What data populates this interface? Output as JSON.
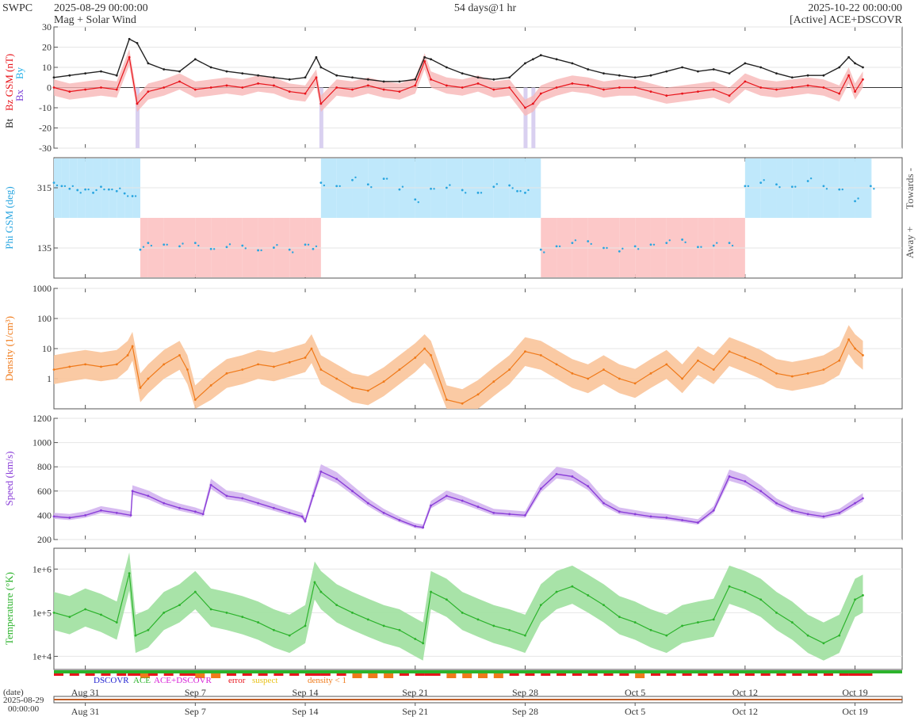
{
  "header": {
    "source": "SWPC",
    "start": "2025-08-29 00:00:00",
    "product": "Mag + Solar Wind",
    "span": "54 days@1 hr",
    "end": "2025-10-22 00:00:00",
    "spacecraft": "[Active] ACE+DSCOVR"
  },
  "colors": {
    "bt": "#222222",
    "bz": "#e8141b",
    "bx": "#7a3fd6",
    "by": "#22b0e8",
    "phi": "#2aa6e0",
    "towards_fill": "#bfe8fb",
    "away_fill": "#fcc8c8",
    "density": "#f07a1a",
    "density_fill": "#f9c49a",
    "speed": "#8a3ed8",
    "speed_fill": "#d3b4f0",
    "temp": "#2cb32c",
    "temp_fill": "#9ee09e"
  },
  "x_axis": {
    "start_day": 0,
    "end_day": 54,
    "ticks": [
      {
        "day": 2,
        "label": "Aug 31"
      },
      {
        "day": 9,
        "label": "Sep 7"
      },
      {
        "day": 16,
        "label": "Sep 14"
      },
      {
        "day": 23,
        "label": "Sep 21"
      },
      {
        "day": 30,
        "label": "Sep 28"
      },
      {
        "day": 37,
        "label": "Oct 5"
      },
      {
        "day": 44,
        "label": "Oct 12"
      },
      {
        "day": 51,
        "label": "Oct 19"
      }
    ],
    "date_label": "(date)",
    "date_value": "2025-08-29",
    "time_value": "00:00:00"
  },
  "legend": {
    "dscovr": "DSCOVR",
    "ace": "ACE",
    "both": "ACE+DSCOVR",
    "error": "error",
    "suspect": "suspect",
    "density_low": "density < 1",
    "dscovr_color": "#1f1fd0",
    "ace_color": "#2cb32c",
    "both_color": "#d61fd6",
    "error_color": "#e8141b",
    "suspect_color": "#e8c21b",
    "density_low_color": "#f07a1a"
  },
  "chart_data": [
    {
      "type": "line",
      "ylabel_parts": [
        "Bt",
        "Bz GSM (nT)",
        "Bx",
        "By"
      ],
      "ylim": [
        -30,
        30
      ],
      "yticks": [
        -30,
        -20,
        -10,
        0,
        10,
        20,
        30
      ],
      "series": [
        {
          "name": "Bt",
          "x": [
            0,
            1,
            2,
            3,
            4,
            4.8,
            5.3,
            6,
            7,
            8,
            9,
            10,
            11,
            12,
            13,
            14,
            15,
            16,
            16.7,
            17,
            18,
            19,
            20,
            21,
            22,
            23,
            23.6,
            24,
            25,
            26,
            27,
            28,
            29,
            30,
            30.5,
            31,
            32,
            33,
            34,
            35,
            36,
            37,
            38,
            39,
            40,
            41,
            42,
            43,
            44,
            45,
            46,
            47,
            48,
            49,
            50,
            50.6,
            51,
            51.5
          ],
          "y": [
            5,
            6,
            7,
            8,
            6,
            24,
            22,
            12,
            9,
            8,
            14,
            10,
            8,
            7,
            6,
            5,
            4,
            5,
            15,
            10,
            6,
            5,
            4,
            3,
            3,
            4,
            15,
            14,
            10,
            7,
            5,
            4,
            5,
            12,
            14,
            16,
            14,
            12,
            9,
            7,
            6,
            5,
            6,
            8,
            10,
            8,
            9,
            7,
            12,
            10,
            7,
            5,
            6,
            6,
            10,
            15,
            12,
            10
          ]
        },
        {
          "name": "Bz",
          "x": [
            0,
            1,
            2,
            3,
            4,
            4.8,
            5.3,
            6,
            7,
            8,
            9,
            10,
            11,
            12,
            13,
            14,
            15,
            16,
            16.7,
            17,
            18,
            19,
            20,
            21,
            22,
            23,
            23.6,
            24,
            25,
            26,
            27,
            28,
            29,
            30,
            30.5,
            31,
            32,
            33,
            34,
            35,
            36,
            37,
            38,
            39,
            40,
            41,
            42,
            43,
            44,
            45,
            46,
            47,
            48,
            49,
            50,
            50.6,
            51,
            51.5
          ],
          "y": [
            0,
            -2,
            -1,
            0,
            -1,
            15,
            -8,
            -2,
            0,
            3,
            -1,
            0,
            1,
            0,
            2,
            1,
            -2,
            -3,
            5,
            -8,
            0,
            -1,
            1,
            -1,
            -2,
            1,
            13,
            4,
            1,
            0,
            2,
            -1,
            0,
            -10,
            -8,
            -3,
            0,
            2,
            1,
            -1,
            0,
            0,
            -2,
            -4,
            -3,
            -2,
            -1,
            -4,
            3,
            0,
            -1,
            0,
            1,
            0,
            -3,
            6,
            -2,
            4
          ]
        }
      ]
    },
    {
      "type": "scatter",
      "ylabel": "Phi GSM (deg)",
      "ylim": [
        45,
        405
      ],
      "yticks": [
        135,
        315
      ],
      "side_labels": [
        "Towards -",
        "Away +"
      ],
      "series": [
        {
          "name": "Phi",
          "x": [
            0,
            0.5,
            1,
            1.5,
            2,
            2.5,
            3,
            3.5,
            4,
            4.5,
            5,
            5.5,
            6,
            7,
            8,
            9,
            10,
            11,
            12,
            13,
            14,
            15,
            16,
            16.5,
            17,
            18,
            19,
            20,
            21,
            22,
            23,
            24,
            25,
            26,
            27,
            28,
            29,
            29.5,
            30,
            31,
            32,
            33,
            34,
            35,
            36,
            37,
            38,
            39,
            40,
            41,
            42,
            43,
            44,
            45,
            46,
            47,
            48,
            49,
            50,
            51,
            52
          ],
          "y": [
            330,
            320,
            312,
            308,
            310,
            300,
            318,
            310,
            305,
            298,
            290,
            130,
            150,
            145,
            140,
            150,
            132,
            138,
            142,
            128,
            136,
            130,
            145,
            132,
            330,
            320,
            338,
            325,
            342,
            310,
            280,
            312,
            315,
            308,
            300,
            318,
            322,
            305,
            300,
            130,
            140,
            150,
            155,
            135,
            125,
            140,
            145,
            150,
            160,
            138,
            142,
            150,
            320,
            330,
            325,
            318,
            335,
            320,
            310,
            275,
            320
          ]
        }
      ]
    },
    {
      "type": "line",
      "ylabel": "Density (1/cm³)",
      "log": true,
      "ylim": [
        0.1,
        1000
      ],
      "yticks": [
        1,
        10,
        100,
        1000
      ],
      "series": [
        {
          "name": "Density",
          "x": [
            0,
            1,
            2,
            3,
            4,
            4.7,
            5,
            5.5,
            6,
            7,
            8,
            8.5,
            9,
            10,
            11,
            12,
            13,
            14,
            15,
            16,
            16.4,
            17,
            18,
            19,
            20,
            21,
            22,
            23,
            23.6,
            24,
            25,
            26,
            27,
            28,
            29,
            30,
            31,
            32,
            33,
            34,
            35,
            36,
            37,
            38,
            39,
            40,
            41,
            42,
            43,
            44,
            45,
            46,
            47,
            48,
            49,
            50,
            50.6,
            51,
            51.5
          ],
          "y": [
            2,
            2.5,
            3,
            2.5,
            3,
            6,
            12,
            0.5,
            1,
            3,
            6,
            2,
            0.2,
            0.6,
            1.5,
            2,
            3,
            2.5,
            3.5,
            5,
            10,
            2,
            1,
            0.5,
            0.4,
            0.8,
            2,
            5,
            10,
            6,
            0.2,
            0.15,
            0.3,
            0.8,
            2,
            8,
            6,
            3,
            1.5,
            1,
            2,
            1,
            0.7,
            1.5,
            3,
            1,
            4,
            2,
            8,
            5,
            3,
            1.5,
            1.2,
            1.5,
            2,
            4,
            20,
            10,
            6
          ]
        }
      ]
    },
    {
      "type": "line",
      "ylabel": "Speed (km/s)",
      "ylim": [
        200,
        1200
      ],
      "yticks": [
        200,
        400,
        600,
        800,
        1000,
        1200
      ],
      "series": [
        {
          "name": "Speed",
          "x": [
            0,
            1,
            2,
            3,
            4,
            4.9,
            5,
            6,
            7,
            8,
            9,
            9.5,
            10,
            11,
            12,
            13,
            14,
            15,
            15.8,
            16,
            16.5,
            17,
            18,
            19,
            20,
            21,
            22,
            23,
            23.5,
            24,
            25,
            26,
            27,
            28,
            29,
            30,
            31,
            32,
            33,
            34,
            35,
            36,
            37,
            38,
            39,
            40,
            41,
            42,
            43,
            44,
            45,
            46,
            47,
            48,
            49,
            50,
            51,
            51.5
          ],
          "y": [
            390,
            380,
            400,
            440,
            420,
            400,
            600,
            560,
            500,
            460,
            430,
            410,
            650,
            560,
            540,
            500,
            460,
            420,
            390,
            350,
            560,
            760,
            700,
            600,
            500,
            420,
            360,
            310,
            300,
            480,
            560,
            520,
            470,
            420,
            410,
            400,
            620,
            740,
            720,
            640,
            500,
            430,
            410,
            390,
            380,
            360,
            340,
            440,
            720,
            680,
            600,
            500,
            440,
            410,
            390,
            420,
            500,
            540
          ]
        }
      ]
    },
    {
      "type": "line",
      "ylabel": "Temperature (°K)",
      "log": true,
      "ylim": [
        5000,
        3000000
      ],
      "ytick_values": [
        10000,
        100000,
        1000000
      ],
      "ytick_labels": [
        "1e+4",
        "1e+5",
        "1e+6"
      ],
      "series": [
        {
          "name": "Temperature",
          "x": [
            0,
            1,
            2,
            3,
            4,
            4.8,
            5.2,
            6,
            7,
            8,
            9,
            10,
            11,
            12,
            13,
            14,
            15,
            16,
            16.6,
            17,
            18,
            19,
            20,
            21,
            22,
            23,
            23.5,
            24,
            25,
            26,
            27,
            28,
            29,
            30,
            31,
            32,
            33,
            34,
            35,
            36,
            37,
            38,
            39,
            40,
            41,
            42,
            43,
            44,
            45,
            46,
            47,
            48,
            49,
            50,
            51,
            51.5
          ],
          "y": [
            100000,
            80000,
            120000,
            90000,
            60000,
            800000,
            30000,
            40000,
            100000,
            150000,
            300000,
            120000,
            100000,
            80000,
            60000,
            40000,
            30000,
            50000,
            500000,
            300000,
            150000,
            100000,
            70000,
            50000,
            40000,
            25000,
            20000,
            300000,
            200000,
            100000,
            70000,
            50000,
            40000,
            30000,
            150000,
            300000,
            400000,
            250000,
            150000,
            80000,
            60000,
            40000,
            30000,
            50000,
            60000,
            70000,
            400000,
            300000,
            200000,
            100000,
            60000,
            30000,
            20000,
            30000,
            200000,
            250000
          ]
        }
      ]
    }
  ]
}
